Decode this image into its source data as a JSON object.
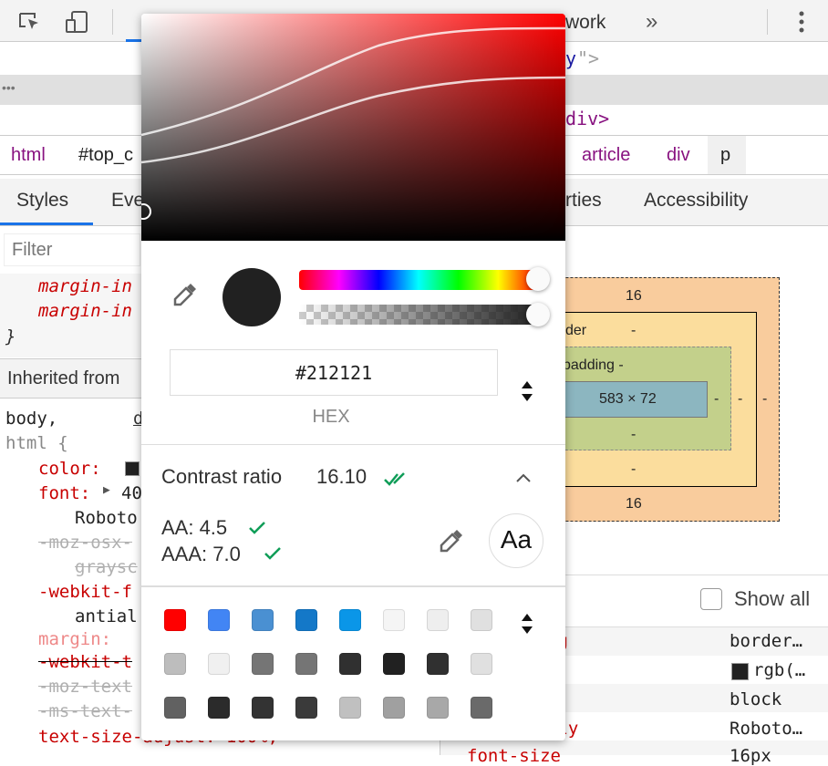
{
  "toolbar": {
    "icons": [
      "inspect-element-icon",
      "device-toolbar-icon"
    ],
    "tab_partial": "work",
    "more_tabs": "»",
    "menu": "kebab-menu-icon"
  },
  "elements": {
    "line1_attr": "y",
    "line1_end": "\">",
    "collapsed": "•••",
    "line3": "div>"
  },
  "breadcrumbs": [
    "html",
    "#top_c",
    "article",
    "div",
    "p"
  ],
  "tabs": [
    "Styles",
    "Eve",
    "rties",
    "Accessibility"
  ],
  "filter_placeholder": "Filter",
  "styles": {
    "lines": [
      "margin-in",
      "margin-in",
      "}"
    ],
    "inherited": "Inherited from",
    "selector1": "body,",
    "source": "d",
    "selector2": "html {",
    "decls": [
      {
        "text": "color:",
        "kind": "prop"
      },
      {
        "text": "font:",
        "kind": "prop",
        "value": "40"
      },
      {
        "text": "Roboto",
        "kind": "val"
      },
      {
        "text": "-moz-osx-",
        "kind": "strike"
      },
      {
        "text": "graysc",
        "kind": "strike"
      },
      {
        "text": "-webkit-f",
        "kind": "prop"
      },
      {
        "text": "antial",
        "kind": "val"
      },
      {
        "text": "margin:",
        "kind": "prop-faded"
      },
      {
        "text": "-webkit-t",
        "kind": "prop-strike"
      },
      {
        "text": "-moz-text",
        "kind": "strike"
      },
      {
        "text": "-ms-text-",
        "kind": "strike"
      },
      {
        "text": "text-size-adjust: 100%;",
        "kind": "prop"
      }
    ]
  },
  "box_model": {
    "margin_top": "16",
    "margin_bottom": "16",
    "border_label": "der",
    "border_top": "-",
    "border_bottom": "-",
    "padding_label": "padding -",
    "padding_bottom": "-",
    "content": "583 × 72",
    "right": [
      "-",
      "-",
      "-"
    ]
  },
  "computed": {
    "show_all": "Show all",
    "show_all_checked": false,
    "rows": [
      {
        "prop": "ng",
        "value": "border…"
      },
      {
        "prop": "",
        "value": "rgb(…",
        "swatch": "#212121"
      },
      {
        "prop": "",
        "value": "block"
      },
      {
        "prop": "ily",
        "value": "Roboto…"
      },
      {
        "prop": "font-size",
        "value": "16px"
      }
    ]
  },
  "color_picker": {
    "hue": "#ff0000",
    "current_color": "#212121",
    "hue_slider_value": 0,
    "alpha_slider_value": 1,
    "hex_value": "#212121",
    "format_label": "HEX",
    "contrast_label": "Contrast ratio",
    "contrast_value": "16.10",
    "aa": "AA: 4.5",
    "aaa": "AAA: 7.0",
    "aa_button": "Aa",
    "swatches": [
      "#ff0000",
      "#4285f4",
      "#4a90d2",
      "#1478c8",
      "#0a96e8",
      "#f5f5f5",
      "#eeeeee",
      "#e0e0e0",
      "#bdbdbd",
      "#f0f0f0",
      "#757575",
      "#757575",
      "#303030",
      "#212121",
      "#303030",
      "#e0e0e0",
      "#616161",
      "#2b2b2b",
      "#333333",
      "#3a3a3a",
      "#c0c0c0",
      "#a0a0a0",
      "#a8a8a8",
      "#6a6a6a"
    ],
    "check_color": "#0f9d58"
  }
}
